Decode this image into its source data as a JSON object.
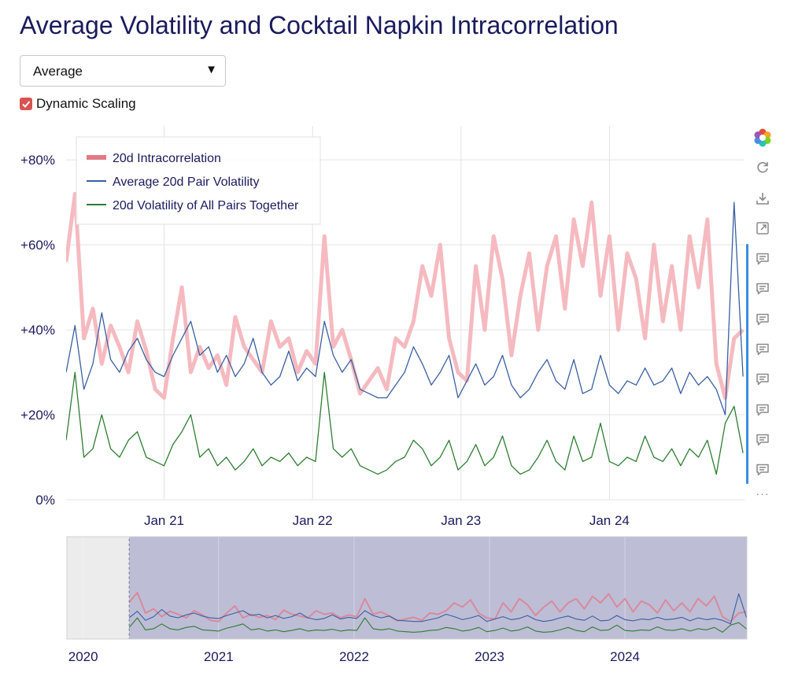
{
  "page": {
    "title": "Average Volatility and Cocktail Napkin Intracorrelation",
    "dropdown": {
      "selected": "Average",
      "arrow": "▼"
    },
    "checkbox": {
      "label": "Dynamic Scaling",
      "checked": true
    },
    "toolbar": {
      "icons": [
        "logo-icon",
        "refresh-icon",
        "download-icon",
        "expand-icon",
        "comment-icon",
        "comment-icon",
        "comment-icon",
        "comment-icon",
        "comment-icon",
        "comment-icon",
        "comment-icon",
        "comment-icon",
        "more-icon"
      ],
      "more_label": "···"
    }
  },
  "chart_data": {
    "type": "line",
    "title": "Average Volatility and Cocktail Napkin Intracorrelation",
    "ylabel": "",
    "xlabel": "",
    "ylim": [
      0,
      0.88
    ],
    "y_ticks": [
      0,
      0.2,
      0.4,
      0.6,
      0.8
    ],
    "y_tick_labels": [
      "0%",
      "+20%",
      "+40%",
      "+60%",
      "+80%"
    ],
    "xlim": [
      2020.34,
      2024.91
    ],
    "x_ticks": [
      2021.0,
      2022.0,
      2023.0,
      2024.0
    ],
    "x_tick_labels": [
      "Jan 21",
      "Jan 22",
      "Jan 23",
      "Jan 24"
    ],
    "grid": true,
    "legend_position": "top-left",
    "series": [
      {
        "name": "20d Intracorrelation",
        "color": "#f4b6bd",
        "legend_color": "#e07a85",
        "style": "thick",
        "x": [
          2020.34,
          2020.4,
          2020.46,
          2020.52,
          2020.58,
          2020.64,
          2020.7,
          2020.76,
          2020.82,
          2020.88,
          2020.94,
          2021.0,
          2021.06,
          2021.12,
          2021.18,
          2021.24,
          2021.3,
          2021.36,
          2021.42,
          2021.48,
          2021.54,
          2021.6,
          2021.66,
          2021.72,
          2021.78,
          2021.84,
          2021.9,
          2021.96,
          2022.02,
          2022.08,
          2022.14,
          2022.2,
          2022.26,
          2022.32,
          2022.38,
          2022.44,
          2022.5,
          2022.56,
          2022.62,
          2022.68,
          2022.74,
          2022.8,
          2022.86,
          2022.92,
          2022.98,
          2023.04,
          2023.1,
          2023.16,
          2023.22,
          2023.28,
          2023.34,
          2023.4,
          2023.46,
          2023.52,
          2023.58,
          2023.64,
          2023.7,
          2023.76,
          2023.82,
          2023.88,
          2023.94,
          2024.0,
          2024.06,
          2024.12,
          2024.18,
          2024.24,
          2024.3,
          2024.36,
          2024.42,
          2024.48,
          2024.54,
          2024.6,
          2024.66,
          2024.72,
          2024.78,
          2024.84,
          2024.9
        ],
        "values": [
          0.56,
          0.72,
          0.38,
          0.45,
          0.32,
          0.41,
          0.36,
          0.3,
          0.42,
          0.35,
          0.26,
          0.24,
          0.38,
          0.5,
          0.3,
          0.36,
          0.31,
          0.34,
          0.27,
          0.43,
          0.36,
          0.33,
          0.3,
          0.42,
          0.36,
          0.38,
          0.3,
          0.35,
          0.32,
          0.62,
          0.36,
          0.4,
          0.33,
          0.25,
          0.28,
          0.31,
          0.26,
          0.38,
          0.36,
          0.42,
          0.55,
          0.48,
          0.6,
          0.38,
          0.3,
          0.28,
          0.55,
          0.4,
          0.62,
          0.52,
          0.34,
          0.48,
          0.58,
          0.4,
          0.55,
          0.62,
          0.45,
          0.66,
          0.55,
          0.7,
          0.48,
          0.62,
          0.4,
          0.58,
          0.52,
          0.38,
          0.6,
          0.42,
          0.55,
          0.4,
          0.62,
          0.5,
          0.66,
          0.32,
          0.24,
          0.38,
          0.4
        ]
      },
      {
        "name": "Average 20d Pair Volatility",
        "color": "#3a5fa0",
        "style": "thin",
        "x": [
          2020.34,
          2020.4,
          2020.46,
          2020.52,
          2020.58,
          2020.64,
          2020.7,
          2020.76,
          2020.82,
          2020.88,
          2020.94,
          2021.0,
          2021.06,
          2021.12,
          2021.18,
          2021.24,
          2021.3,
          2021.36,
          2021.42,
          2021.48,
          2021.54,
          2021.6,
          2021.66,
          2021.72,
          2021.78,
          2021.84,
          2021.9,
          2021.96,
          2022.02,
          2022.08,
          2022.14,
          2022.2,
          2022.26,
          2022.32,
          2022.38,
          2022.44,
          2022.5,
          2022.56,
          2022.62,
          2022.68,
          2022.74,
          2022.8,
          2022.86,
          2022.92,
          2022.98,
          2023.04,
          2023.1,
          2023.16,
          2023.22,
          2023.28,
          2023.34,
          2023.4,
          2023.46,
          2023.52,
          2023.58,
          2023.64,
          2023.7,
          2023.76,
          2023.82,
          2023.88,
          2023.94,
          2024.0,
          2024.06,
          2024.12,
          2024.18,
          2024.24,
          2024.3,
          2024.36,
          2024.42,
          2024.48,
          2024.54,
          2024.6,
          2024.66,
          2024.72,
          2024.78,
          2024.84,
          2024.9
        ],
        "values": [
          0.3,
          0.41,
          0.26,
          0.32,
          0.44,
          0.33,
          0.3,
          0.35,
          0.38,
          0.33,
          0.3,
          0.29,
          0.34,
          0.38,
          0.42,
          0.34,
          0.36,
          0.3,
          0.34,
          0.29,
          0.32,
          0.38,
          0.3,
          0.27,
          0.29,
          0.35,
          0.28,
          0.31,
          0.29,
          0.42,
          0.34,
          0.3,
          0.33,
          0.26,
          0.25,
          0.24,
          0.24,
          0.27,
          0.3,
          0.36,
          0.32,
          0.27,
          0.3,
          0.34,
          0.24,
          0.28,
          0.32,
          0.27,
          0.29,
          0.34,
          0.27,
          0.24,
          0.26,
          0.3,
          0.33,
          0.28,
          0.26,
          0.33,
          0.25,
          0.26,
          0.34,
          0.27,
          0.25,
          0.28,
          0.27,
          0.31,
          0.27,
          0.28,
          0.31,
          0.25,
          0.3,
          0.27,
          0.29,
          0.26,
          0.2,
          0.7,
          0.29
        ]
      },
      {
        "name": "20d Volatility of All Pairs Together",
        "color": "#2e7d32",
        "style": "thin",
        "x": [
          2020.34,
          2020.4,
          2020.46,
          2020.52,
          2020.58,
          2020.64,
          2020.7,
          2020.76,
          2020.82,
          2020.88,
          2020.94,
          2021.0,
          2021.06,
          2021.12,
          2021.18,
          2021.24,
          2021.3,
          2021.36,
          2021.42,
          2021.48,
          2021.54,
          2021.6,
          2021.66,
          2021.72,
          2021.78,
          2021.84,
          2021.9,
          2021.96,
          2022.02,
          2022.08,
          2022.14,
          2022.2,
          2022.26,
          2022.32,
          2022.38,
          2022.44,
          2022.5,
          2022.56,
          2022.62,
          2022.68,
          2022.74,
          2022.8,
          2022.86,
          2022.92,
          2022.98,
          2023.04,
          2023.1,
          2023.16,
          2023.22,
          2023.28,
          2023.34,
          2023.4,
          2023.46,
          2023.52,
          2023.58,
          2023.64,
          2023.7,
          2023.76,
          2023.82,
          2023.88,
          2023.94,
          2024.0,
          2024.06,
          2024.12,
          2024.18,
          2024.24,
          2024.3,
          2024.36,
          2024.42,
          2024.48,
          2024.54,
          2024.6,
          2024.66,
          2024.72,
          2024.78,
          2024.84,
          2024.9
        ],
        "values": [
          0.14,
          0.3,
          0.1,
          0.12,
          0.2,
          0.12,
          0.1,
          0.14,
          0.16,
          0.1,
          0.09,
          0.08,
          0.13,
          0.16,
          0.2,
          0.1,
          0.12,
          0.08,
          0.1,
          0.07,
          0.09,
          0.12,
          0.08,
          0.1,
          0.09,
          0.11,
          0.08,
          0.1,
          0.09,
          0.3,
          0.12,
          0.1,
          0.12,
          0.08,
          0.07,
          0.06,
          0.07,
          0.09,
          0.1,
          0.14,
          0.12,
          0.08,
          0.1,
          0.14,
          0.07,
          0.09,
          0.13,
          0.08,
          0.1,
          0.15,
          0.08,
          0.06,
          0.07,
          0.1,
          0.14,
          0.09,
          0.07,
          0.15,
          0.09,
          0.1,
          0.18,
          0.09,
          0.08,
          0.1,
          0.09,
          0.15,
          0.1,
          0.09,
          0.12,
          0.08,
          0.12,
          0.1,
          0.14,
          0.06,
          0.18,
          0.22,
          0.11
        ]
      }
    ],
    "navigator": {
      "xlim": [
        2019.88,
        2024.9
      ],
      "x_ticks": [
        2020,
        2021,
        2022,
        2023,
        2024
      ],
      "x_tick_labels": [
        "2020",
        "2021",
        "2022",
        "2023",
        "2024"
      ],
      "selected_range": [
        2020.34,
        2024.9
      ]
    }
  }
}
